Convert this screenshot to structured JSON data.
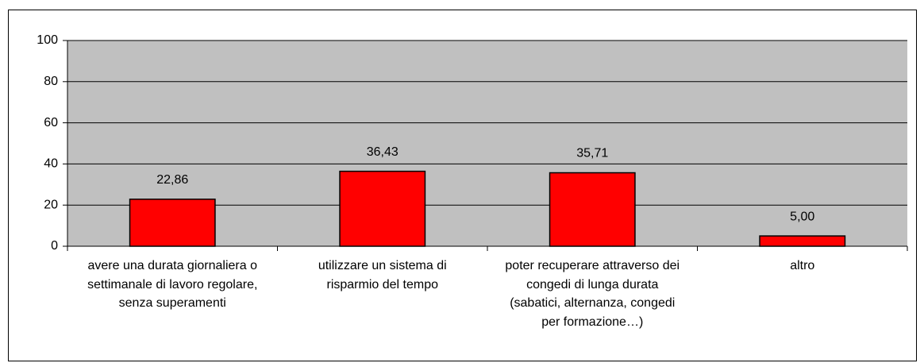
{
  "chart_data": {
    "type": "bar",
    "categories": [
      "avere una durata giornaliera o settimanale di lavoro regolare, senza superamenti",
      "utilizzare un sistema di risparmio del tempo",
      "poter recuperare attraverso dei congedi di lunga durata (sabatici, alternanza, congedi per formazione…)",
      "altro"
    ],
    "values": [
      22.86,
      36.43,
      35.71,
      5.0
    ],
    "value_labels": [
      "22,86",
      "36,43",
      "35,71",
      "5,00"
    ],
    "color": "#ff0000",
    "ylim": [
      0,
      100
    ],
    "yticks": [
      0,
      20,
      40,
      60,
      80,
      100
    ],
    "grid": true
  }
}
